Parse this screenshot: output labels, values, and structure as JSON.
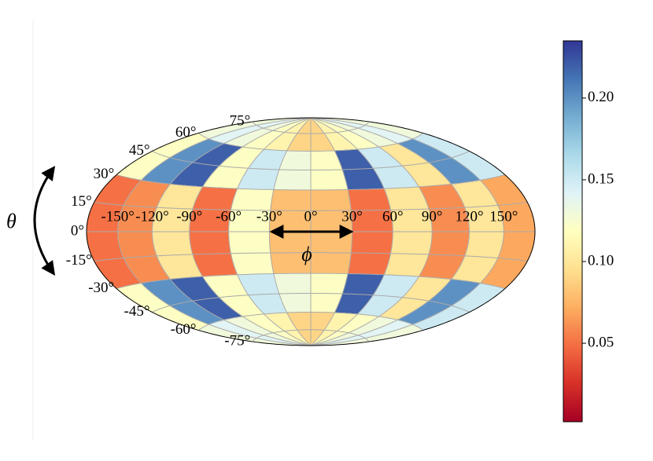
{
  "chart_data": {
    "type": "map-heatmap",
    "projection": "hammer",
    "colormap": "RdYlBu",
    "xlim": [
      -180,
      180
    ],
    "ylim": [
      -90,
      90
    ],
    "xticks": [
      {
        "value": -150,
        "label": "-150°"
      },
      {
        "value": -120,
        "label": "-120°"
      },
      {
        "value": -90,
        "label": "-90°"
      },
      {
        "value": -60,
        "label": "-60°"
      },
      {
        "value": -30,
        "label": "-30°"
      },
      {
        "value": 0,
        "label": "0°"
      },
      {
        "value": 30,
        "label": "30°"
      },
      {
        "value": 60,
        "label": "60°"
      },
      {
        "value": 90,
        "label": "90°"
      },
      {
        "value": 120,
        "label": "120°"
      },
      {
        "value": 150,
        "label": "150°"
      }
    ],
    "yticks": [
      {
        "value": -75,
        "label": "-75°"
      },
      {
        "value": -60,
        "label": "-60°"
      },
      {
        "value": -45,
        "label": "-45°"
      },
      {
        "value": -30,
        "label": "-30°"
      },
      {
        "value": -15,
        "label": "-15°"
      },
      {
        "value": 0,
        "label": "0°"
      },
      {
        "value": 15,
        "label": "15°"
      },
      {
        "value": 30,
        "label": "30°"
      },
      {
        "value": 45,
        "label": "45°"
      },
      {
        "value": 60,
        "label": "60°"
      },
      {
        "value": 75,
        "label": "75°"
      }
    ],
    "grid": true,
    "z": [
      [
        0.13,
        0.14,
        0.13,
        0.12,
        0.11,
        0.09,
        0.09,
        0.11,
        0.12,
        0.13,
        0.14,
        0.13
      ],
      [
        0.12,
        0.2,
        0.22,
        0.12,
        0.15,
        0.13,
        0.12,
        0.22,
        0.15,
        0.1,
        0.2,
        0.15
      ],
      [
        0.05,
        0.06,
        0.1,
        0.05,
        0.12,
        0.08,
        0.08,
        0.05,
        0.1,
        0.06,
        0.1,
        0.07
      ],
      [
        0.05,
        0.06,
        0.1,
        0.05,
        0.12,
        0.08,
        0.08,
        0.05,
        0.1,
        0.06,
        0.1,
        0.07
      ],
      [
        0.12,
        0.2,
        0.22,
        0.12,
        0.15,
        0.13,
        0.12,
        0.22,
        0.15,
        0.1,
        0.2,
        0.15
      ],
      [
        0.13,
        0.14,
        0.13,
        0.12,
        0.11,
        0.09,
        0.09,
        0.11,
        0.12,
        0.13,
        0.14,
        0.13
      ]
    ],
    "clim": [
      0.002,
      0.235
    ],
    "cticks": [
      0.05,
      {
        "value": 0.1,
        "label": "0.10"
      },
      0.15,
      {
        "value": 0.2,
        "label": "0.20"
      }
    ],
    "annotations": {
      "theta": "θ",
      "phi": "ϕ"
    }
  }
}
